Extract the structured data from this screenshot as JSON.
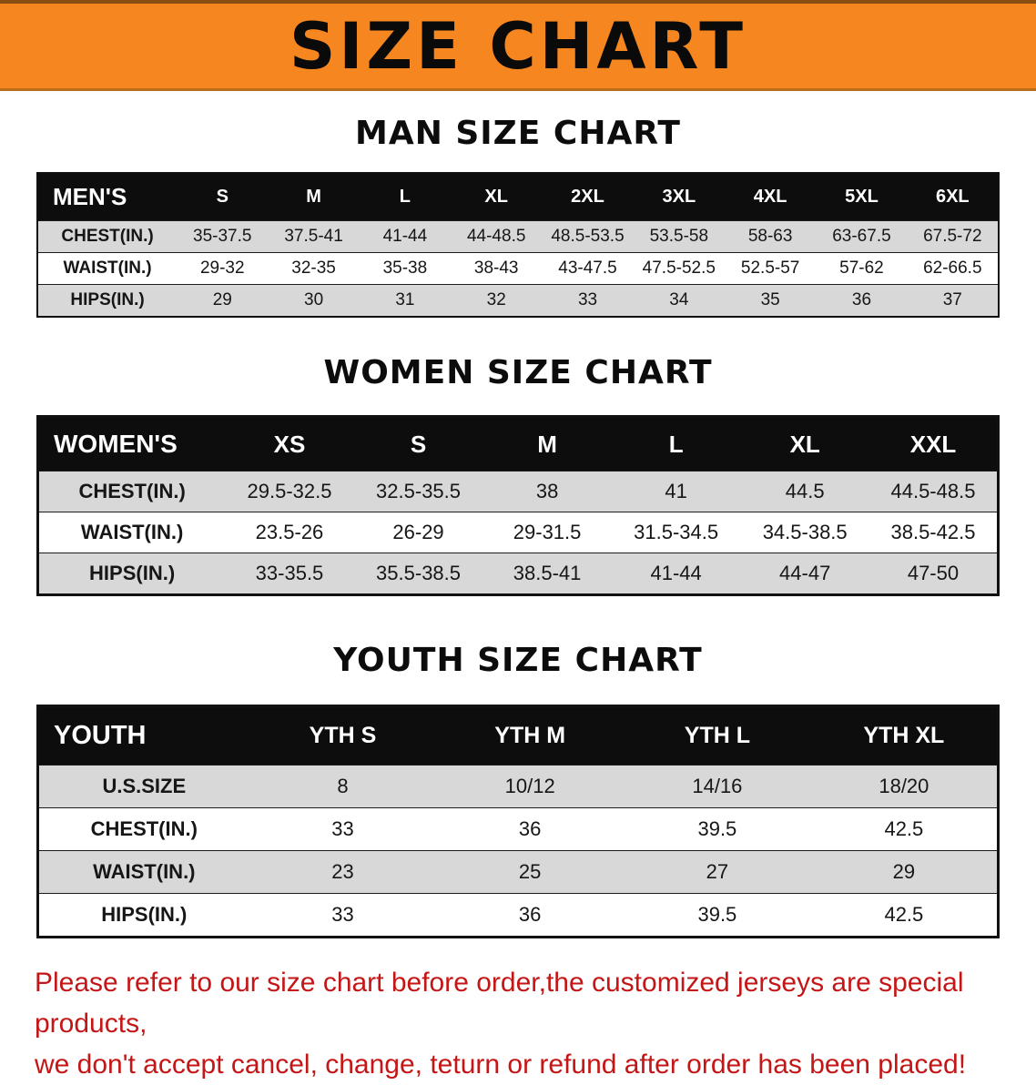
{
  "banner": {
    "title": "SIZE CHART"
  },
  "sections": [
    {
      "heading": "MAN SIZE CHART",
      "table": {
        "header": [
          "MEN'S",
          "S",
          "M",
          "L",
          "XL",
          "2XL",
          "3XL",
          "4XL",
          "5XL",
          "6XL"
        ],
        "rows": [
          [
            "CHEST(IN.)",
            "35-37.5",
            "37.5-41",
            "41-44",
            "44-48.5",
            "48.5-53.5",
            "53.5-58",
            "58-63",
            "63-67.5",
            "67.5-72"
          ],
          [
            "WAIST(IN.)",
            "29-32",
            "32-35",
            "35-38",
            "38-43",
            "43-47.5",
            "47.5-52.5",
            "52.5-57",
            "57-62",
            "62-66.5"
          ],
          [
            "HIPS(IN.)",
            "29",
            "30",
            "31",
            "32",
            "33",
            "34",
            "35",
            "36",
            "37"
          ]
        ]
      }
    },
    {
      "heading": "WOMEN SIZE CHART",
      "table": {
        "header": [
          "WOMEN'S",
          "XS",
          "S",
          "M",
          "L",
          "XL",
          "XXL"
        ],
        "rows": [
          [
            "CHEST(IN.)",
            "29.5-32.5",
            "32.5-35.5",
            "38",
            "41",
            "44.5",
            "44.5-48.5"
          ],
          [
            "WAIST(IN.)",
            "23.5-26",
            "26-29",
            "29-31.5",
            "31.5-34.5",
            "34.5-38.5",
            "38.5-42.5"
          ],
          [
            "HIPS(IN.)",
            "33-35.5",
            "35.5-38.5",
            "38.5-41",
            "41-44",
            "44-47",
            "47-50"
          ]
        ]
      }
    },
    {
      "heading": "YOUTH SIZE CHART",
      "table": {
        "header": [
          "YOUTH",
          "YTH S",
          "YTH M",
          "YTH L",
          "YTH XL"
        ],
        "rows": [
          [
            "U.S.SIZE",
            "8",
            "10/12",
            "14/16",
            "18/20"
          ],
          [
            "CHEST(IN.)",
            "33",
            "36",
            "39.5",
            "42.5"
          ],
          [
            "WAIST(IN.)",
            "23",
            "25",
            "27",
            "29"
          ],
          [
            "HIPS(IN.)",
            "33",
            "36",
            "39.5",
            "42.5"
          ]
        ]
      }
    }
  ],
  "footer_note": {
    "line1": "Please refer to our size chart before order,the customized jerseys are special products,",
    "line2": "we don't accept cancel, change, teturn or refund after order has been placed!"
  },
  "colors": {
    "banner_bg": "#f6861f",
    "header_bg": "#0d0d0d",
    "stripe": "#d8d8d8",
    "note_red": "#c41616"
  }
}
